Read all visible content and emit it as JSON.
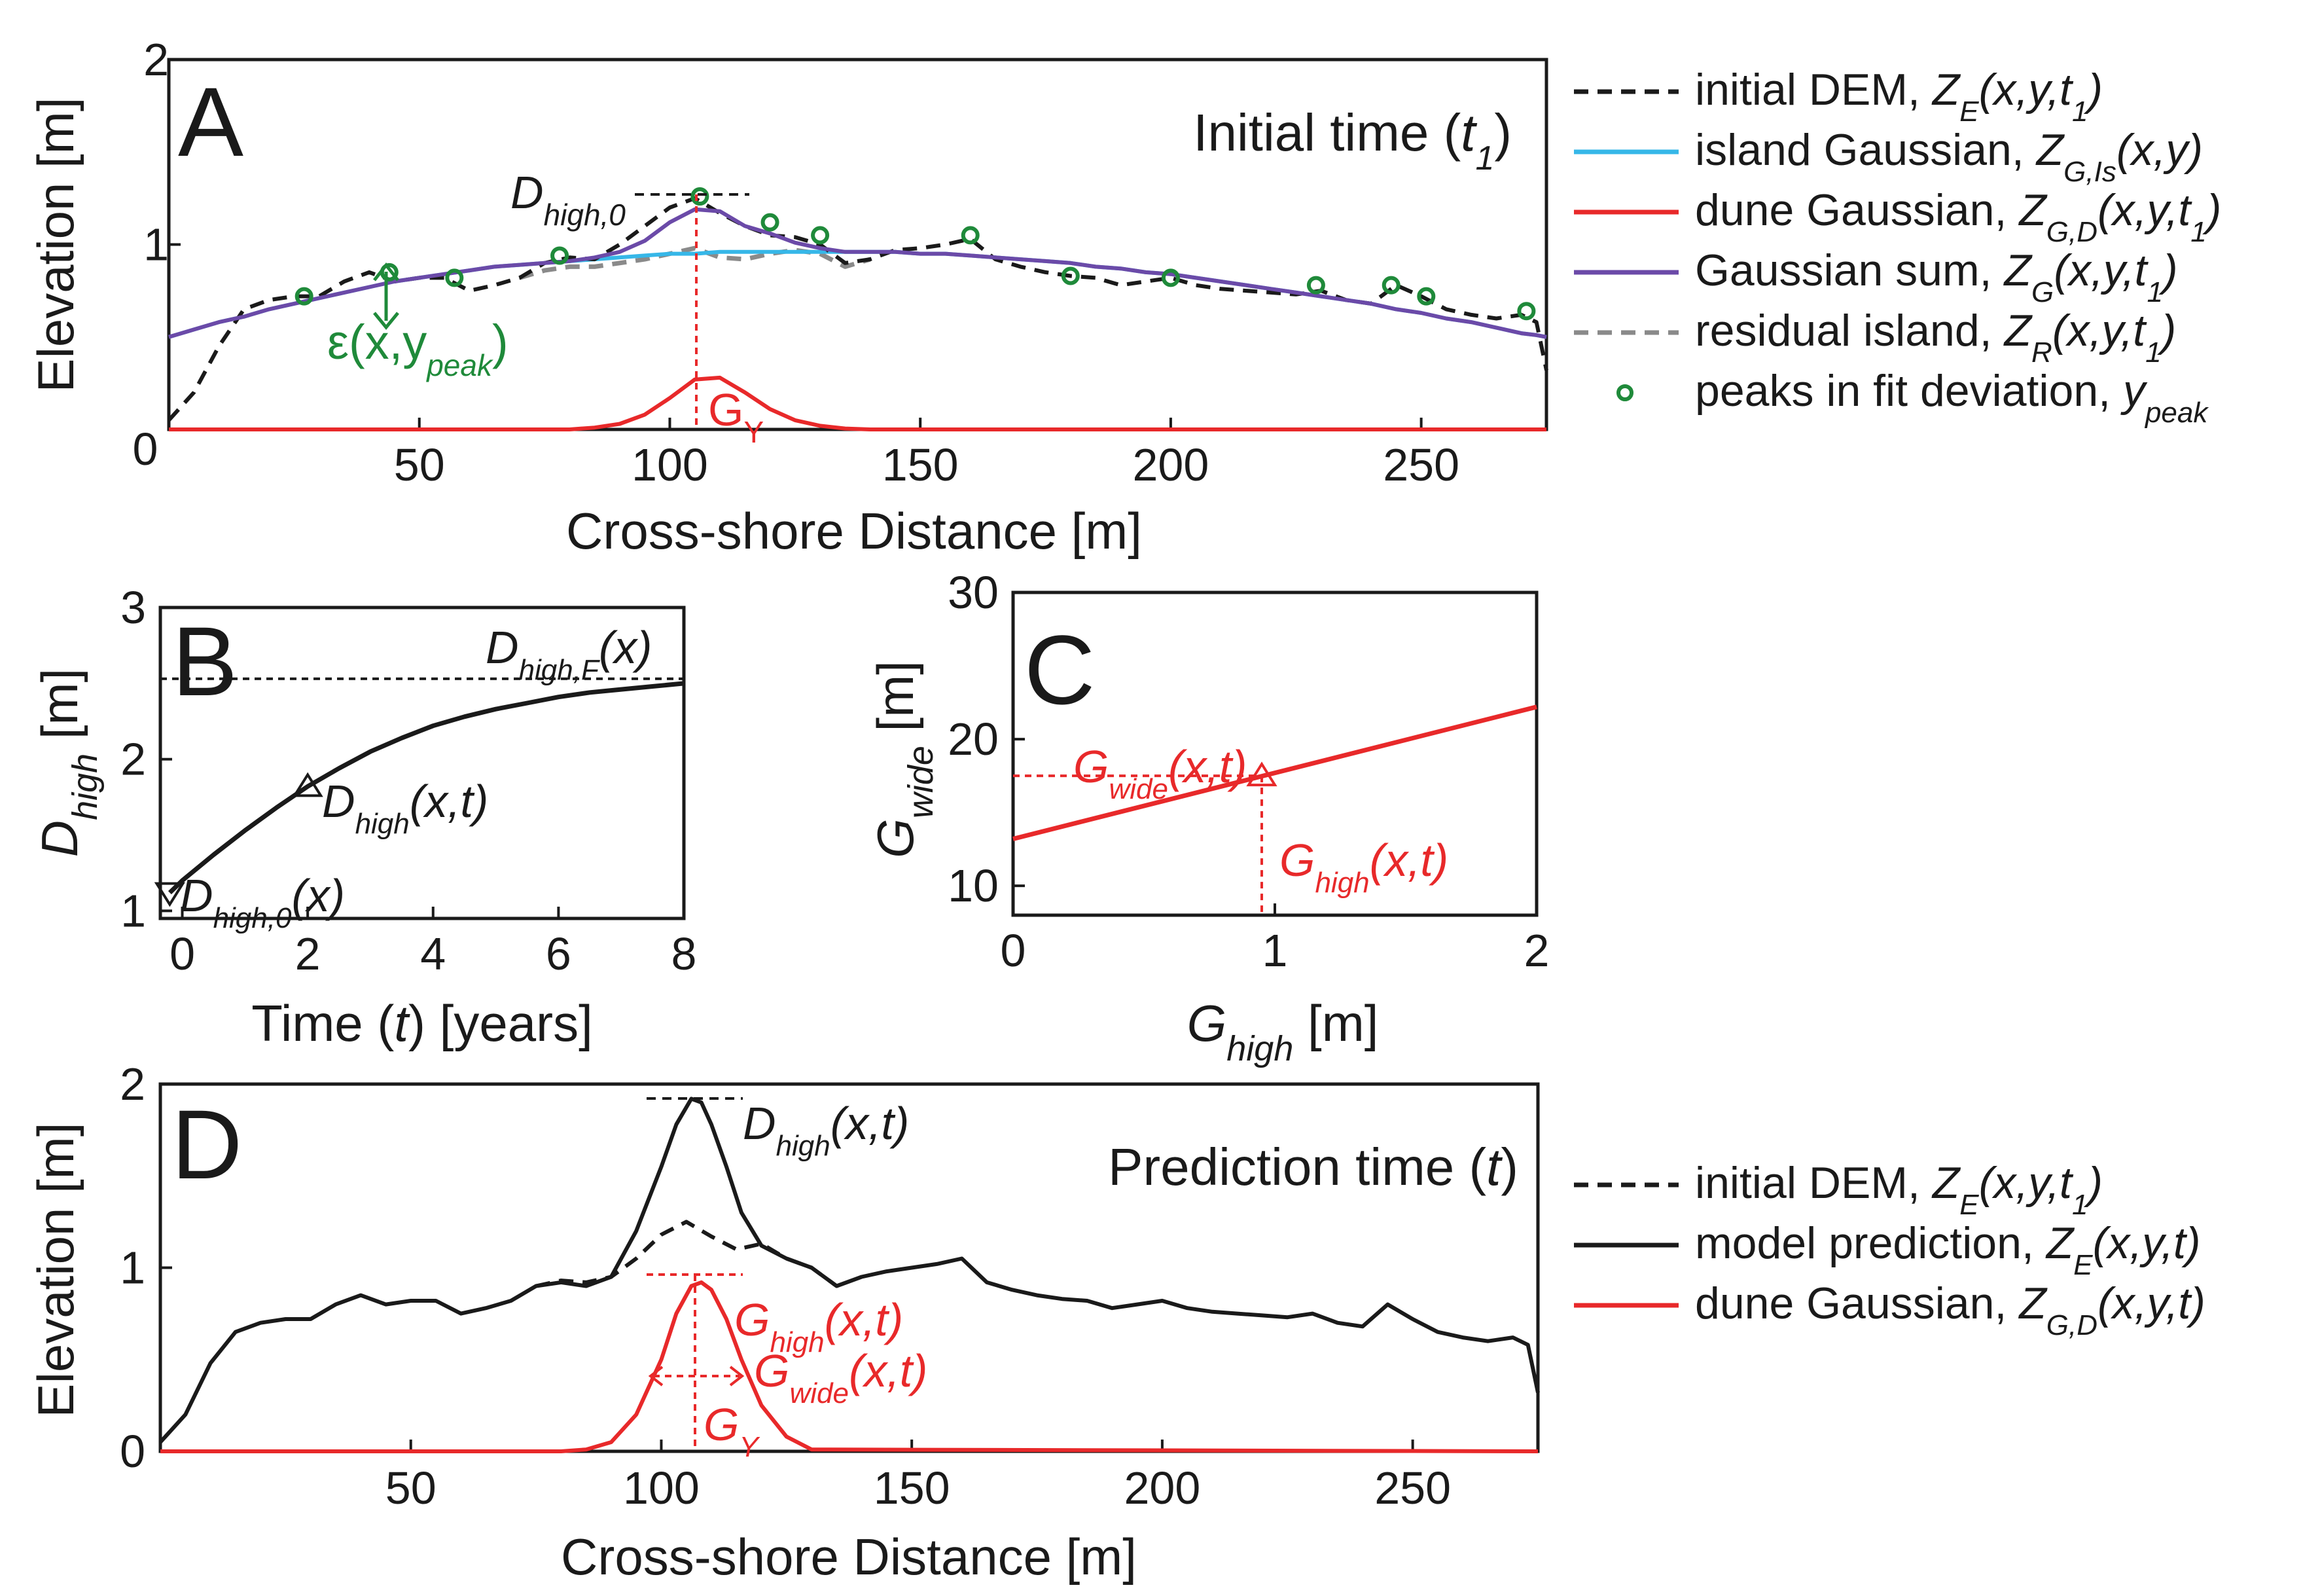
{
  "colors": {
    "dem": "#1a1a1a",
    "island": "#36b7e8",
    "dune": "#e8292a",
    "sum": "#6b4aa8",
    "residual": "#8a8a8a",
    "peaks": "#1f8a3a",
    "prediction": "#1a1a1a"
  },
  "chart_data": [
    {
      "panel": "A",
      "type": "line",
      "title": "Initial time (t1)",
      "xlabel": "Cross-shore Distance [m]",
      "ylabel": "Elevation [m]",
      "xlim": [
        0,
        275
      ],
      "ylim": [
        0,
        2
      ],
      "xticks": [
        "50",
        "100",
        "150",
        "200",
        "250"
      ],
      "xtick_values": [
        50,
        100,
        150,
        200,
        250
      ],
      "yticks": [
        "0",
        "1",
        "2"
      ],
      "ytick_values": [
        0,
        1,
        2
      ],
      "x": [
        0,
        5,
        10,
        15,
        20,
        25,
        30,
        35,
        40,
        45,
        50,
        55,
        60,
        65,
        70,
        75,
        80,
        85,
        90,
        95,
        100,
        105,
        110,
        115,
        120,
        125,
        130,
        135,
        140,
        145,
        150,
        155,
        160,
        165,
        170,
        175,
        180,
        185,
        190,
        195,
        200,
        205,
        210,
        215,
        220,
        225,
        230,
        235,
        240,
        245,
        250,
        255,
        260,
        265,
        270,
        273,
        275
      ],
      "series": [
        {
          "name": "initial DEM, Z_E(x,y,t_1)",
          "style": "dashed",
          "color_key": "dem",
          "values": [
            0.05,
            0.2,
            0.45,
            0.65,
            0.7,
            0.72,
            0.72,
            0.8,
            0.85,
            0.8,
            0.82,
            0.82,
            0.75,
            0.78,
            0.82,
            0.9,
            0.93,
            0.92,
            1.0,
            1.1,
            1.2,
            1.25,
            1.17,
            1.1,
            1.05,
            1.04,
            1.0,
            0.9,
            0.92,
            0.97,
            0.98,
            1.0,
            1.03,
            0.92,
            0.88,
            0.85,
            0.83,
            0.82,
            0.78,
            0.8,
            0.82,
            0.78,
            0.76,
            0.75,
            0.74,
            0.73,
            0.75,
            0.7,
            0.68,
            0.78,
            0.72,
            0.65,
            0.62,
            0.6,
            0.62,
            0.58,
            0.32
          ]
        },
        {
          "name": "island Gaussian, Z_G,Is(x,y)",
          "style": "solid",
          "color_key": "island",
          "values": [
            0.5,
            0.54,
            0.58,
            0.61,
            0.65,
            0.68,
            0.71,
            0.74,
            0.77,
            0.8,
            0.82,
            0.84,
            0.86,
            0.88,
            0.89,
            0.9,
            0.91,
            0.92,
            0.93,
            0.94,
            0.95,
            0.95,
            0.96,
            0.96,
            0.96,
            0.96,
            0.96,
            0.96,
            0.96,
            0.96,
            0.95,
            0.95,
            0.94,
            0.93,
            0.92,
            0.91,
            0.9,
            0.88,
            0.87,
            0.85,
            0.84,
            0.82,
            0.8,
            0.78,
            0.76,
            0.74,
            0.72,
            0.7,
            0.68,
            0.65,
            0.63,
            0.6,
            0.58,
            0.55,
            0.52,
            0.51,
            0.5
          ]
        },
        {
          "name": "dune Gaussian, Z_G,D(x,y,t_1)",
          "style": "solid",
          "color_key": "dune",
          "values": [
            0,
            0,
            0,
            0,
            0,
            0,
            0,
            0,
            0,
            0,
            0,
            0,
            0,
            0,
            0,
            0,
            0,
            0.01,
            0.03,
            0.08,
            0.17,
            0.27,
            0.28,
            0.2,
            0.11,
            0.05,
            0.02,
            0.005,
            0,
            0,
            0,
            0,
            0,
            0,
            0,
            0,
            0,
            0,
            0,
            0,
            0,
            0,
            0,
            0,
            0,
            0,
            0,
            0,
            0,
            0,
            0,
            0,
            0,
            0,
            0,
            0,
            0
          ]
        },
        {
          "name": "Gaussian sum, Z_G(x,y,t_1)",
          "style": "solid",
          "color_key": "sum",
          "values": [
            0.5,
            0.54,
            0.58,
            0.61,
            0.65,
            0.68,
            0.71,
            0.74,
            0.77,
            0.8,
            0.82,
            0.84,
            0.86,
            0.88,
            0.89,
            0.9,
            0.91,
            0.93,
            0.96,
            1.02,
            1.12,
            1.19,
            1.18,
            1.1,
            1.06,
            1.01,
            0.98,
            0.96,
            0.96,
            0.96,
            0.95,
            0.95,
            0.94,
            0.93,
            0.92,
            0.91,
            0.9,
            0.88,
            0.87,
            0.85,
            0.84,
            0.82,
            0.8,
            0.78,
            0.76,
            0.74,
            0.72,
            0.7,
            0.68,
            0.65,
            0.63,
            0.6,
            0.58,
            0.55,
            0.52,
            0.51,
            0.5
          ]
        },
        {
          "name": "residual island, Z_R(x,y,t_1)",
          "style": "dashed",
          "color_key": "residual",
          "x": [
            70,
            75,
            80,
            85,
            90,
            95,
            100,
            105,
            110,
            115,
            120,
            125,
            130,
            135,
            140
          ],
          "values": [
            0.82,
            0.86,
            0.88,
            0.88,
            0.9,
            0.92,
            0.95,
            0.98,
            0.93,
            0.92,
            0.95,
            0.97,
            0.95,
            0.88,
            0.92
          ]
        }
      ],
      "peaks": {
        "name": "peaks in fit deviation, y_peak",
        "color_key": "peaks",
        "x": [
          27,
          44,
          57,
          78,
          106,
          120,
          130,
          160,
          180,
          200,
          229,
          244,
          251,
          271
        ],
        "y": [
          0.72,
          0.85,
          0.82,
          0.94,
          1.26,
          1.12,
          1.05,
          1.05,
          0.83,
          0.82,
          0.78,
          0.78,
          0.72,
          0.64
        ]
      },
      "annotations": {
        "d_high_0": "D",
        "d_high_0_sub": "high,0",
        "epsilon": "ε(x,y",
        "epsilon_sub": "peak",
        "epsilon_close": ")",
        "g_y": "G",
        "g_y_sub": "Y"
      }
    },
    {
      "panel": "B",
      "type": "line",
      "xlabel": "Time (t) [years]",
      "ylabel": "D_high [m]",
      "xlim": [
        0,
        8
      ],
      "ylim": [
        0.95,
        3
      ],
      "xticks": [
        "0",
        "2",
        "4",
        "6",
        "8"
      ],
      "xtick_values": [
        0,
        2,
        4,
        6,
        8
      ],
      "yticks": [
        "1",
        "2",
        "3"
      ],
      "ytick_values": [
        1,
        2,
        3
      ],
      "x": [
        -0.2,
        0,
        0.5,
        1,
        1.5,
        2,
        2.5,
        3,
        3.5,
        4,
        4.5,
        5,
        5.5,
        6,
        6.5,
        7,
        7.5,
        8
      ],
      "series": [
        {
          "name": "D_high(x,t)",
          "style": "solid",
          "values": [
            1.12,
            1.2,
            1.37,
            1.53,
            1.68,
            1.82,
            1.94,
            2.05,
            2.14,
            2.22,
            2.28,
            2.33,
            2.37,
            2.41,
            2.44,
            2.46,
            2.48,
            2.5
          ]
        }
      ],
      "asymptote": {
        "label": "D_high,F(x)",
        "y": 2.53
      },
      "markers": [
        {
          "label": "D_high,0(x)",
          "x": -0.2,
          "y": 1.12,
          "shape": "triangle-down"
        },
        {
          "label": "D_high(x,t)",
          "x": 2,
          "y": 1.82,
          "shape": "triangle-up"
        }
      ],
      "annotations": {
        "dhf": "D",
        "dhf_sub": "high,F",
        "dhf_tail": "(x)",
        "dht": "D",
        "dht_sub": "high",
        "dht_tail": "(x,t)",
        "dh0": "D",
        "dh0_sub": "high,0",
        "dh0_tail": "(x)"
      }
    },
    {
      "panel": "C",
      "type": "line",
      "xlabel": "G_high [m]",
      "ylabel": "G_wide [m]",
      "xlim": [
        0,
        2
      ],
      "ylim": [
        8,
        30
      ],
      "xticks": [
        "0",
        "1",
        "2"
      ],
      "xtick_values": [
        0,
        1,
        2
      ],
      "yticks": [
        "10",
        "20",
        "30"
      ],
      "ytick_values": [
        10,
        20,
        30
      ],
      "x": [
        0,
        2
      ],
      "series": [
        {
          "name": "G_wide vs G_high",
          "style": "solid",
          "color_key": "dune",
          "values": [
            13.2,
            22.2
          ]
        }
      ],
      "marker": {
        "x": 0.95,
        "y": 17.5,
        "shape": "triangle-up"
      },
      "annotations": {
        "gw": "G",
        "gw_sub": "wide",
        "gw_tail": "(x,t)",
        "gh": "G",
        "gh_sub": "high",
        "gh_tail": "(x,t)"
      }
    },
    {
      "panel": "D",
      "type": "line",
      "title": "Prediction time (t)",
      "xlabel": "Cross-shore Distance [m]",
      "ylabel": "Elevation [m]",
      "xlim": [
        0,
        275
      ],
      "ylim": [
        0,
        2
      ],
      "xticks": [
        "50",
        "100",
        "150",
        "200",
        "250"
      ],
      "xtick_values": [
        50,
        100,
        150,
        200,
        250
      ],
      "yticks": [
        "0",
        "1",
        "2"
      ],
      "ytick_values": [
        0,
        1,
        2
      ],
      "series": [
        {
          "name": "initial DEM, Z_E(x,y,t_1)",
          "style": "dashed",
          "color_key": "dem",
          "x": [
            75,
            80,
            85,
            90,
            95,
            100,
            105,
            110,
            115,
            120,
            125,
            130,
            135
          ],
          "values": [
            0.9,
            0.93,
            0.92,
            0.95,
            1.05,
            1.18,
            1.25,
            1.17,
            1.1,
            1.13,
            1.05,
            1.0,
            0.9
          ]
        },
        {
          "name": "model prediction, Z_E(x,y,t)",
          "style": "solid",
          "color_key": "prediction",
          "x": [
            0,
            5,
            10,
            15,
            20,
            25,
            30,
            35,
            40,
            45,
            50,
            55,
            60,
            65,
            70,
            75,
            80,
            85,
            90,
            95,
            100,
            103,
            106,
            108,
            110,
            113,
            116,
            120,
            125,
            130,
            135,
            140,
            145,
            150,
            155,
            160,
            165,
            170,
            175,
            180,
            185,
            190,
            195,
            200,
            205,
            210,
            215,
            220,
            225,
            230,
            235,
            240,
            245,
            250,
            255,
            260,
            265,
            270,
            273,
            275
          ],
          "values": [
            0.05,
            0.2,
            0.48,
            0.65,
            0.7,
            0.72,
            0.72,
            0.8,
            0.85,
            0.8,
            0.82,
            0.82,
            0.75,
            0.78,
            0.82,
            0.9,
            0.92,
            0.9,
            0.95,
            1.2,
            1.55,
            1.78,
            1.92,
            1.9,
            1.78,
            1.55,
            1.3,
            1.12,
            1.05,
            1.0,
            0.9,
            0.95,
            0.98,
            1.0,
            1.02,
            1.05,
            0.92,
            0.88,
            0.85,
            0.83,
            0.82,
            0.78,
            0.8,
            0.82,
            0.78,
            0.76,
            0.75,
            0.74,
            0.73,
            0.75,
            0.7,
            0.68,
            0.8,
            0.72,
            0.65,
            0.62,
            0.6,
            0.62,
            0.58,
            0.32
          ]
        },
        {
          "name": "dune Gaussian, Z_G,D(x,y,t)",
          "style": "solid",
          "color_key": "dune",
          "x": [
            0,
            80,
            85,
            90,
            95,
            100,
            103,
            106,
            108,
            110,
            113,
            116,
            120,
            125,
            130,
            275
          ],
          "values": [
            0,
            0,
            0.01,
            0.05,
            0.2,
            0.5,
            0.75,
            0.9,
            0.92,
            0.88,
            0.72,
            0.5,
            0.25,
            0.08,
            0.01,
            0
          ]
        }
      ],
      "annotations": {
        "dht": "D",
        "dht_sub": "high",
        "dht_tail": "(x,t)",
        "ght": "G",
        "ght_sub": "high",
        "ght_tail": "(x,t)",
        "gwt": "G",
        "gwt_sub": "wide",
        "gwt_tail": "(x,t)",
        "gy": "G",
        "gy_sub": "Y"
      }
    }
  ],
  "labels": {
    "panel_a": "A",
    "panel_b": "B",
    "panel_c": "C",
    "panel_d": "D",
    "a_title_main": "Initial time (",
    "a_title_var": "t",
    "a_title_sub": "1",
    "a_title_close": ")",
    "d_title_main": "Prediction time (",
    "d_title_var": "t",
    "d_title_close": ")",
    "xlabel_ad": "Cross-shore Distance [m]",
    "ylabel_ad": "Elevation [m]",
    "b_xlabel_pre": "Time (",
    "b_xlabel_var": "t",
    "b_xlabel_post": ") [years]",
    "b_ylabel_var": "D",
    "b_ylabel_sub": "high",
    "b_ylabel_unit": " [m]",
    "c_xlabel_var": "G",
    "c_xlabel_sub": "high",
    "c_xlabel_unit": " [m]",
    "c_ylabel_var": "G",
    "c_ylabel_sub": "wide",
    "c_ylabel_unit": " [m]"
  },
  "legend_a": [
    {
      "text": "initial DEM, ",
      "var": "Z",
      "sub": "E",
      "tail": "(x,y,t",
      "tsub": "1",
      "close": ")"
    },
    {
      "text": "island Gaussian, ",
      "var": "Z",
      "sub": "G,Is",
      "tail": "(x,y)",
      "tsub": "",
      "close": ""
    },
    {
      "text": "dune Gaussian, ",
      "var": "Z",
      "sub": "G,D",
      "tail": "(x,y,t",
      "tsub": "1",
      "close": ")"
    },
    {
      "text": "Gaussian sum, ",
      "var": "Z",
      "sub": "G",
      "tail": "(x,y,t",
      "tsub": "1",
      "close": ")"
    },
    {
      "text": "residual island, ",
      "var": "Z",
      "sub": "R",
      "tail": "(x,y,t",
      "tsub": "1",
      "close": ")"
    },
    {
      "text": "peaks in fit deviation, ",
      "var": "y",
      "sub": "peak",
      "tail": "",
      "tsub": "",
      "close": ""
    }
  ],
  "legend_d": [
    {
      "text": "initial DEM, ",
      "var": "Z",
      "sub": "E",
      "tail": "(x,y,t",
      "tsub": "1",
      "close": ")"
    },
    {
      "text": "model prediction, ",
      "var": "Z",
      "sub": "E",
      "tail": "(x,y,t)",
      "tsub": "",
      "close": ""
    },
    {
      "text": "dune Gaussian, ",
      "var": "Z",
      "sub": "G,D",
      "tail": "(x,y,t)",
      "tsub": "",
      "close": ""
    }
  ]
}
